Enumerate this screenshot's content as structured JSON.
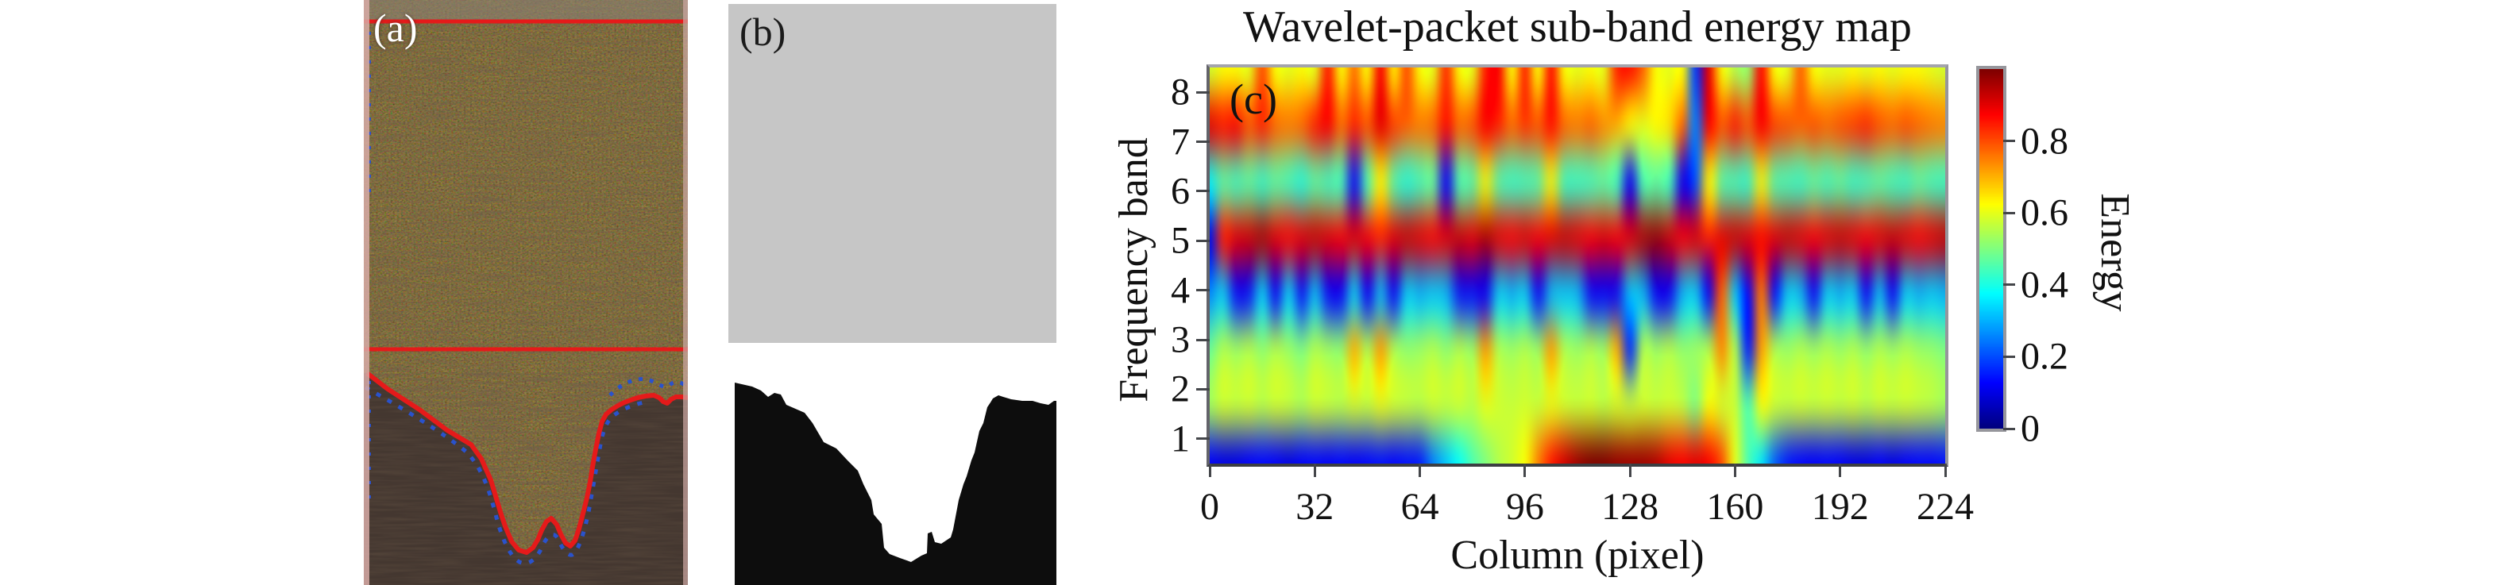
{
  "figure": {
    "panel_a": {
      "label": "(a)",
      "content": "weld groove macro photograph with detected boundaries",
      "boundary_line_color": "#e51a1a",
      "contour_dot_color": "#2a52cc"
    },
    "panel_b": {
      "label": "(b)",
      "content": "featureless region (gray) and binary groove mask (black/white)",
      "gray_color": "#c6c6c6",
      "mask_color": "#0d0d0d"
    },
    "panel_c": {
      "label": "(c)"
    }
  },
  "chart_data": {
    "type": "heatmap",
    "title": "Wavelet-packet sub-band energy map",
    "xlabel": "Column (pixel)",
    "ylabel": "Frequency band",
    "colorbar_label": "Energy",
    "colormap": "jet",
    "x_range": [
      0,
      224
    ],
    "y_bands": [
      1,
      2,
      3,
      4,
      5,
      6,
      7,
      8
    ],
    "value_range": [
      0,
      1
    ],
    "x_ticks": [
      0,
      32,
      64,
      96,
      128,
      160,
      192,
      224
    ],
    "y_ticks": [
      8,
      7,
      6,
      5,
      4,
      3,
      2,
      1
    ],
    "colorbar_ticks": [
      "0.8",
      "0.6",
      "0.4",
      "0.2",
      "0"
    ],
    "grid": false,
    "columns": [
      0,
      4,
      8,
      12,
      16,
      20,
      24,
      28,
      32,
      36,
      40,
      44,
      48,
      52,
      56,
      60,
      64,
      68,
      72,
      76,
      80,
      84,
      88,
      92,
      96,
      100,
      104,
      108,
      112,
      116,
      120,
      124,
      128,
      132,
      136,
      140,
      144,
      148,
      152,
      156,
      160,
      164,
      168,
      172,
      176,
      180,
      184,
      188,
      192,
      196,
      200,
      204,
      208,
      212,
      216,
      220,
      224
    ],
    "bands_top_to_bottom": [
      8,
      7,
      6,
      5,
      4,
      3,
      2,
      1
    ],
    "values": [
      [
        0.58,
        0.62,
        0.62,
        0.6,
        0.8,
        0.62,
        0.6,
        0.62,
        0.6,
        0.85,
        0.62,
        0.76,
        0.62,
        0.88,
        0.64,
        0.8,
        0.62,
        0.6,
        0.83,
        0.62,
        0.6,
        0.85,
        0.88,
        0.62,
        0.84,
        0.62,
        0.86,
        0.62,
        0.6,
        0.62,
        0.6,
        0.84,
        0.86,
        0.78,
        0.62,
        0.6,
        0.62,
        0.18,
        0.9,
        0.62,
        0.55,
        0.52,
        0.87,
        0.62,
        0.6,
        0.78,
        0.62,
        0.6,
        0.6,
        0.62,
        0.6,
        0.62,
        0.6,
        0.62,
        0.62,
        0.6,
        0.58
      ],
      [
        0.9,
        0.86,
        0.88,
        0.8,
        0.84,
        0.78,
        0.76,
        0.78,
        0.85,
        0.88,
        0.78,
        0.84,
        0.8,
        0.9,
        0.82,
        0.78,
        0.76,
        0.78,
        0.86,
        0.78,
        0.8,
        0.88,
        0.84,
        0.78,
        0.82,
        0.8,
        0.86,
        0.78,
        0.76,
        0.78,
        0.74,
        0.7,
        0.62,
        0.6,
        0.63,
        0.66,
        0.78,
        0.25,
        0.88,
        0.8,
        0.85,
        0.8,
        0.88,
        0.82,
        0.8,
        0.78,
        0.8,
        0.78,
        0.8,
        0.82,
        0.84,
        0.8,
        0.78,
        0.8,
        0.78,
        0.76,
        0.75
      ],
      [
        0.38,
        0.46,
        0.44,
        0.46,
        0.43,
        0.46,
        0.44,
        0.41,
        0.46,
        0.44,
        0.43,
        0.15,
        0.44,
        0.62,
        0.46,
        0.41,
        0.44,
        0.46,
        0.14,
        0.44,
        0.46,
        0.6,
        0.46,
        0.43,
        0.44,
        0.46,
        0.6,
        0.44,
        0.43,
        0.44,
        0.46,
        0.43,
        0.13,
        0.44,
        0.46,
        0.43,
        0.12,
        0.2,
        0.62,
        0.46,
        0.44,
        0.43,
        0.6,
        0.46,
        0.44,
        0.43,
        0.46,
        0.44,
        0.46,
        0.43,
        0.44,
        0.46,
        0.44,
        0.43,
        0.46,
        0.44,
        0.43
      ],
      [
        0.1,
        0.86,
        0.9,
        0.92,
        0.95,
        0.9,
        0.88,
        0.9,
        0.92,
        0.9,
        0.88,
        0.9,
        0.88,
        0.85,
        0.9,
        0.92,
        0.9,
        0.88,
        0.9,
        0.92,
        0.9,
        0.95,
        0.9,
        0.88,
        0.9,
        0.88,
        0.9,
        0.92,
        0.9,
        0.88,
        0.9,
        0.88,
        0.9,
        0.95,
        0.97,
        0.92,
        0.88,
        0.9,
        0.85,
        0.9,
        0.92,
        0.9,
        0.88,
        0.9,
        0.92,
        0.9,
        0.88,
        0.9,
        0.92,
        0.9,
        0.88,
        0.9,
        0.92,
        0.9,
        0.88,
        0.9,
        0.93
      ],
      [
        0.26,
        0.32,
        0.14,
        0.15,
        0.32,
        0.14,
        0.32,
        0.15,
        0.3,
        0.14,
        0.13,
        0.32,
        0.13,
        0.3,
        0.14,
        0.32,
        0.3,
        0.32,
        0.3,
        0.15,
        0.14,
        0.13,
        0.32,
        0.3,
        0.32,
        0.14,
        0.3,
        0.32,
        0.3,
        0.14,
        0.13,
        0.14,
        0.32,
        0.3,
        0.13,
        0.13,
        0.3,
        0.32,
        0.12,
        0.78,
        0.32,
        0.13,
        0.76,
        0.14,
        0.32,
        0.3,
        0.14,
        0.32,
        0.3,
        0.32,
        0.14,
        0.3,
        0.14,
        0.32,
        0.3,
        0.32,
        0.3
      ],
      [
        0.48,
        0.55,
        0.53,
        0.55,
        0.52,
        0.55,
        0.53,
        0.5,
        0.55,
        0.53,
        0.52,
        0.7,
        0.55,
        0.72,
        0.55,
        0.52,
        0.53,
        0.55,
        0.52,
        0.55,
        0.53,
        0.72,
        0.55,
        0.53,
        0.55,
        0.53,
        0.72,
        0.55,
        0.53,
        0.55,
        0.53,
        0.7,
        0.16,
        0.55,
        0.53,
        0.55,
        0.52,
        0.53,
        0.55,
        0.74,
        0.55,
        0.15,
        0.72,
        0.55,
        0.53,
        0.55,
        0.53,
        0.55,
        0.53,
        0.55,
        0.52,
        0.55,
        0.53,
        0.55,
        0.53,
        0.52,
        0.5
      ],
      [
        0.54,
        0.58,
        0.57,
        0.58,
        0.56,
        0.58,
        0.57,
        0.55,
        0.58,
        0.57,
        0.56,
        0.58,
        0.57,
        0.6,
        0.58,
        0.57,
        0.56,
        0.58,
        0.57,
        0.58,
        0.56,
        0.6,
        0.58,
        0.57,
        0.58,
        0.57,
        0.6,
        0.58,
        0.57,
        0.58,
        0.56,
        0.58,
        0.57,
        0.58,
        0.57,
        0.58,
        0.56,
        0.5,
        0.62,
        0.58,
        0.57,
        0.45,
        0.62,
        0.58,
        0.57,
        0.58,
        0.57,
        0.58,
        0.57,
        0.58,
        0.56,
        0.58,
        0.57,
        0.58,
        0.57,
        0.56,
        0.54
      ],
      [
        0.12,
        0.1,
        0.1,
        0.12,
        0.13,
        0.12,
        0.1,
        0.12,
        0.13,
        0.12,
        0.13,
        0.12,
        0.13,
        0.14,
        0.13,
        0.14,
        0.15,
        0.25,
        0.32,
        0.38,
        0.45,
        0.5,
        0.55,
        0.58,
        0.62,
        0.75,
        0.85,
        0.92,
        0.97,
        1.0,
        1.0,
        0.98,
        0.97,
        0.97,
        0.95,
        0.9,
        0.88,
        0.9,
        0.88,
        0.8,
        0.6,
        0.45,
        0.35,
        0.22,
        0.15,
        0.13,
        0.12,
        0.13,
        0.12,
        0.1,
        0.1,
        0.12,
        0.1,
        0.12,
        0.13,
        0.13,
        0.14
      ]
    ],
    "legend_position": "right-colorbar"
  },
  "colors": {
    "annotation_red": "#e51a1a",
    "annotation_blue": "#2a52cc",
    "featureless_gray": "#c6c6c6",
    "mask_black": "#0d0d0d",
    "frame_gray": "#96969c",
    "text": "#111111",
    "background": "#ffffff"
  }
}
